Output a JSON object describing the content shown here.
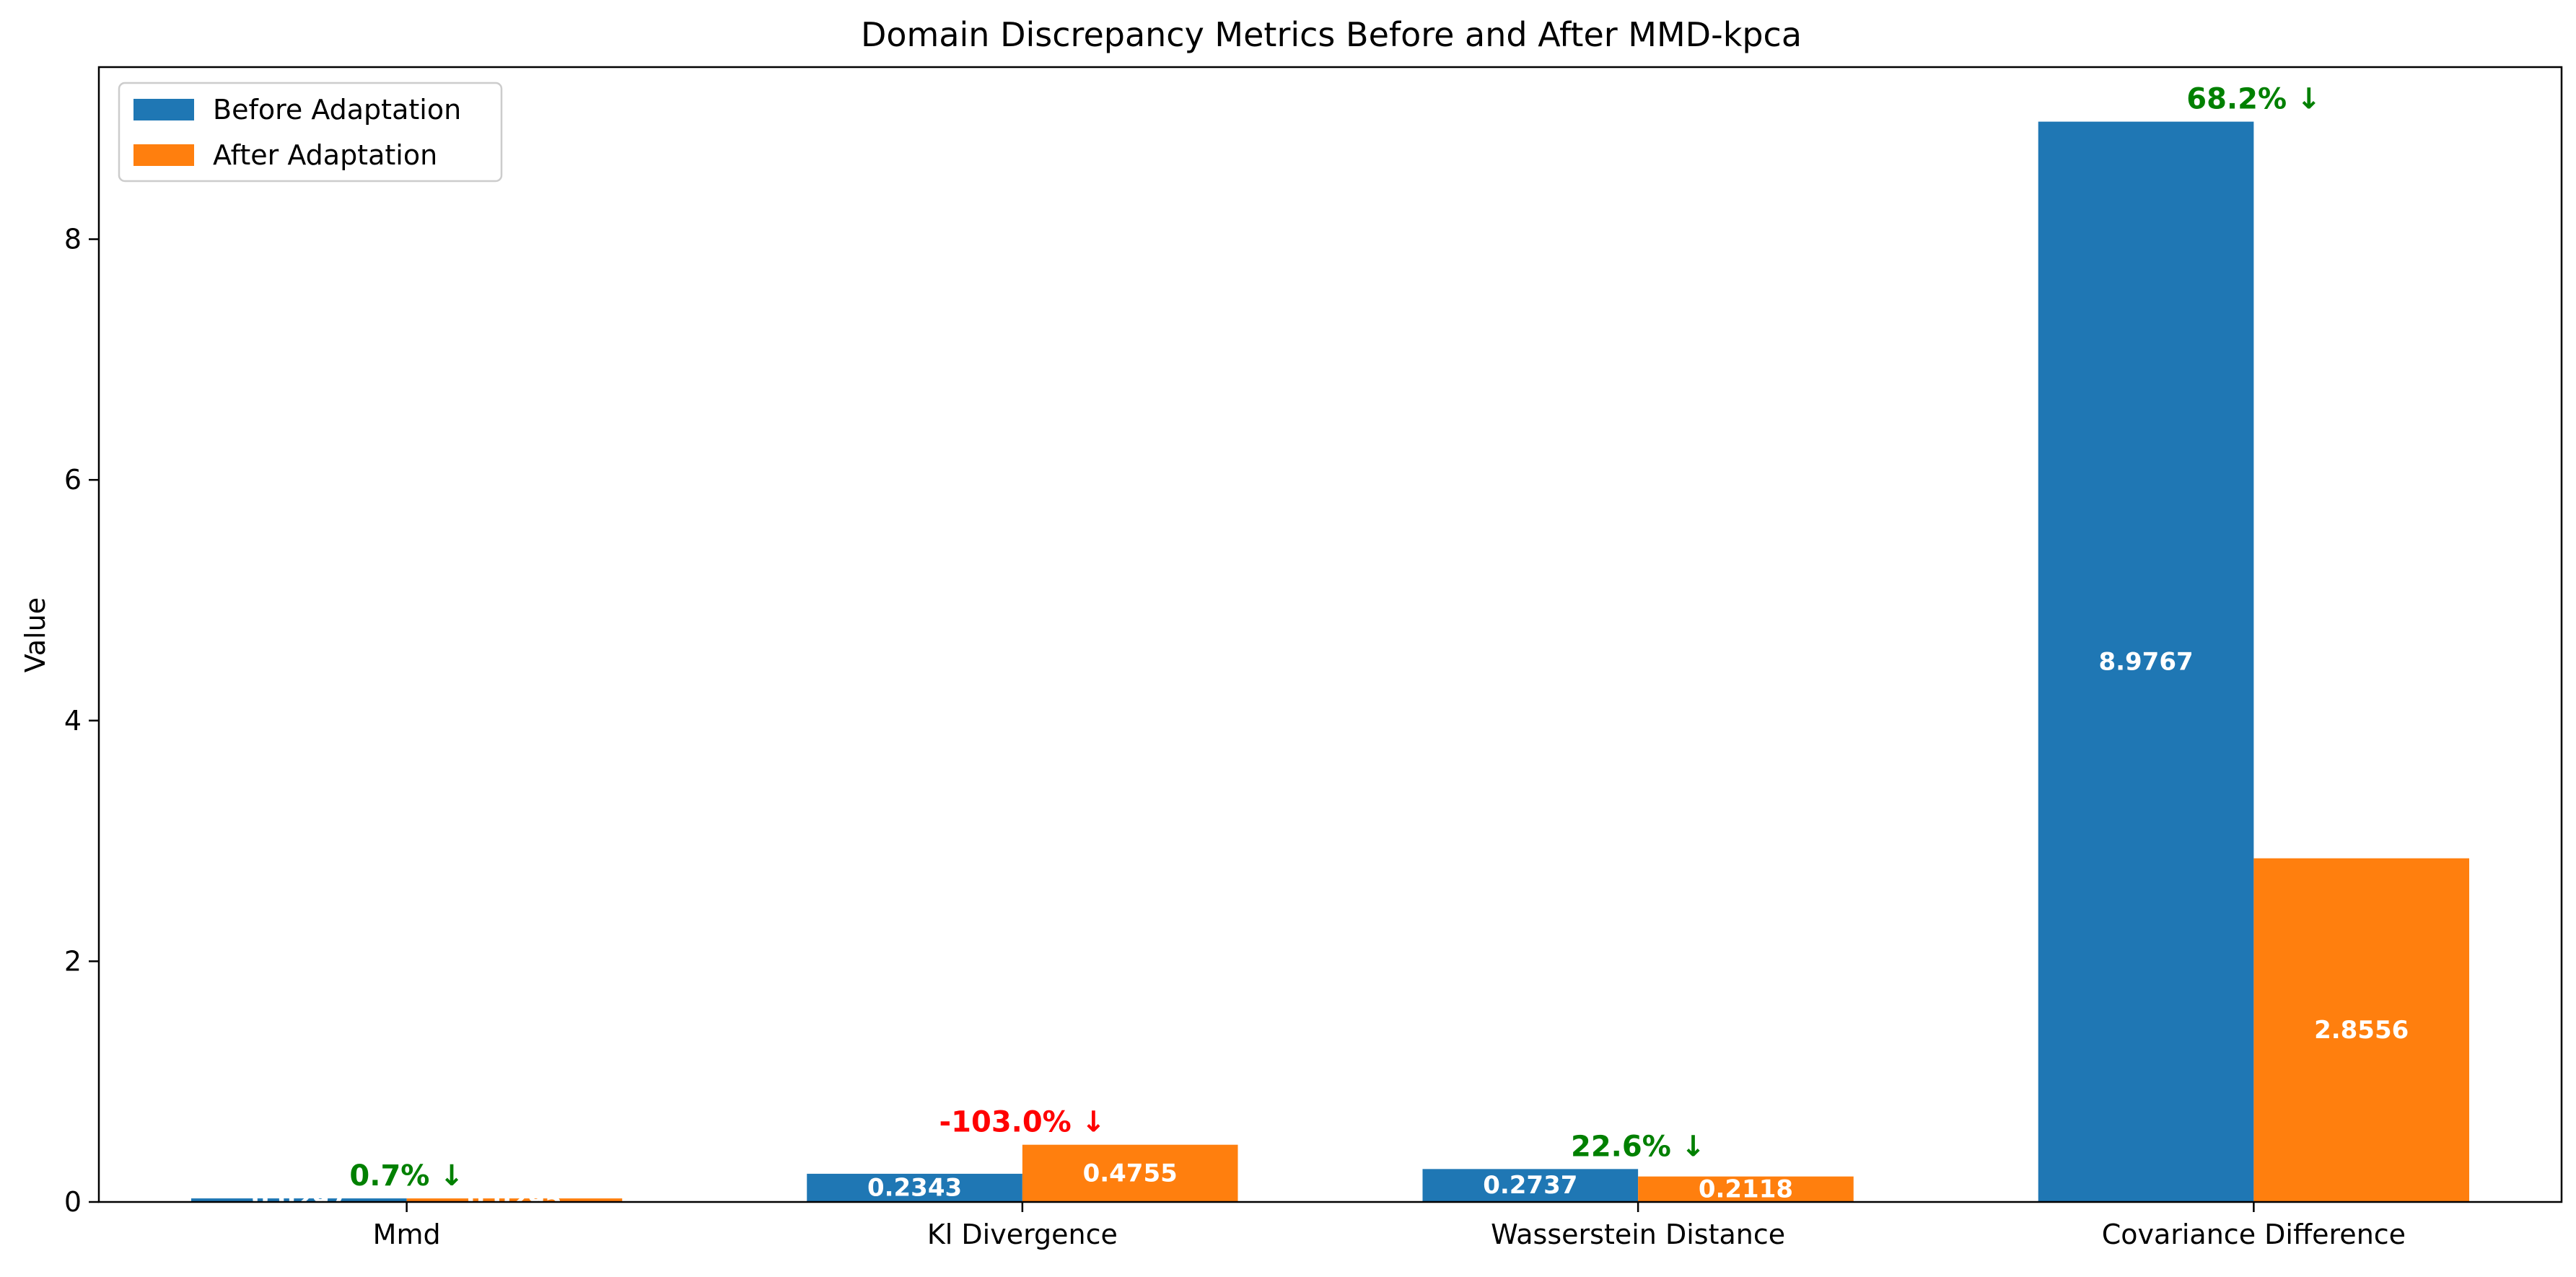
{
  "chart_data": {
    "type": "bar",
    "title": "Domain Discrepancy Metrics Before and After MMD-kpca",
    "xlabel": "",
    "ylabel": "Value",
    "categories": [
      "Mmd",
      "Kl Divergence",
      "Wasserstein Distance",
      "Covariance Difference"
    ],
    "series": [
      {
        "name": "Before Adaptation",
        "color": "#1f77b4",
        "values": [
          0.0297,
          0.2343,
          0.2737,
          8.9767
        ],
        "value_labels": [
          "0.0297",
          "0.2343",
          "0.2737",
          "8.9767"
        ]
      },
      {
        "name": "After Adaptation",
        "color": "#ff7f0e",
        "values": [
          0.0295,
          0.4755,
          0.2118,
          2.8556
        ],
        "value_labels": [
          "0.0295",
          "0.4755",
          "0.2118",
          "2.8556"
        ]
      }
    ],
    "annotations": [
      {
        "category": "Mmd",
        "text": "0.7% ↓",
        "color": "#008000"
      },
      {
        "category": "Kl Divergence",
        "text": "-103.0% ↓",
        "color": "#ff0000"
      },
      {
        "category": "Wasserstein Distance",
        "text": "22.6% ↓",
        "color": "#008000"
      },
      {
        "category": "Covariance Difference",
        "text": "68.2% ↓",
        "color": "#008000"
      }
    ],
    "ylim": [
      0,
      9.43
    ],
    "yticks": [
      0,
      2,
      4,
      6,
      8
    ],
    "grid": false,
    "legend_position": "upper left"
  }
}
